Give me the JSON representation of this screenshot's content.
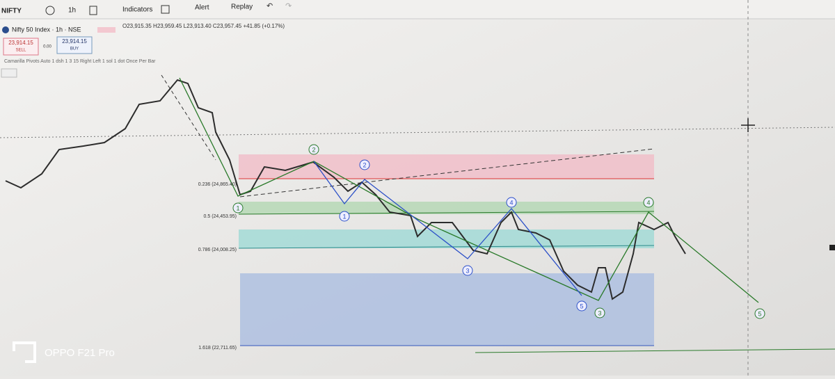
{
  "toolbar": {
    "symbol": "NIFTY",
    "interval": "1h",
    "items": [
      "Indicators",
      "Alert",
      "Replay"
    ]
  },
  "header": {
    "title": "Nifty 50 Index · 1h · NSE",
    "ohlc": "O23,915.35 H23,959.45 L23,913.40 C23,957.45 +41.85 (+0.17%)"
  },
  "trade": {
    "sell_price": "23,914.15",
    "sell": "SELL",
    "spread": "0.00",
    "buy_price": "23,914.15",
    "buy": "BUY"
  },
  "indicator": "Camarilla Pivots Auto 1 dsh 1 3 15 Right Left 1 sol 1 dot Once Per Bar",
  "fib_levels": [
    "0.236 (24,865.40)",
    "0.5 (24,453.95)",
    "0.786 (24,008.25)",
    "1.618 (22,711.65)"
  ],
  "wave_labels": [
    "2",
    "2",
    "1",
    "1",
    "3",
    "4",
    "5",
    "3",
    "4",
    "5"
  ],
  "watermark": "OPPO F21 Pro"
}
